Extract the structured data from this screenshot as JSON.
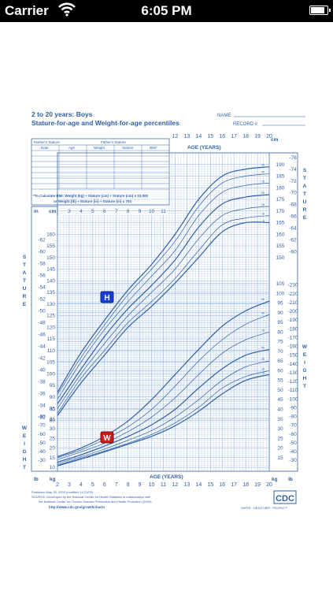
{
  "status_bar": {
    "carrier": "Carrier",
    "time": "6:05 PM",
    "battery_level": 0.9,
    "icons": [
      "wifi-icon",
      "battery-icon"
    ]
  },
  "chart_page": {
    "title": "2 to 20 years: Boys",
    "subtitle": "Stature-for-age and Weight-for-age percentiles",
    "name_label": "NAME",
    "record_label": "RECORD #",
    "table_headers": {
      "mothers_stature": "Mother's Stature",
      "fathers_stature": "Father's Stature",
      "date": "Date",
      "age": "Age",
      "weight": "Weight",
      "stature": "Stature",
      "bmi": "BMI*"
    },
    "bmi_note_line1": "*To Calculate BMI: Weight (kg) ÷ Stature (cm) ÷ Stature (cm) x 10,000",
    "bmi_note_line2": "or Weight (lb) ÷ Stature (in) ÷ Stature (in) x 703",
    "age_axis_label": "AGE (YEARS)",
    "stature_label": "STATURE",
    "weight_label": "WEIGHT",
    "unit_in": "in",
    "unit_cm": "cm",
    "unit_lb": "lb",
    "unit_kg": "kg",
    "marker_h": "H",
    "marker_w": "W",
    "published": "Published May 30, 2000 (modified 11/21/00).",
    "source_line1": "SOURCE: Developed by the National Center for Health Statistics in collaboration with",
    "source_line2": "the National Center for Chronic Disease Prevention and Health Promotion (2000).",
    "url": "http://www.cdc.gov/growthcharts",
    "cdc_logo": "CDC",
    "cdc_tagline": "SAFER · HEALTHIER · PEOPLE™",
    "colors": {
      "ink": "#2f5fa6",
      "grid": "#8fb0dc",
      "h_marker": "#1a3fd6",
      "w_marker": "#d01a1a"
    }
  },
  "chart_data": {
    "type": "line",
    "x_ages_bottom": [
      2,
      3,
      4,
      5,
      6,
      7,
      8,
      9,
      10,
      11,
      12,
      13,
      14,
      15,
      16,
      17,
      18,
      19,
      20
    ],
    "x_ages_top": [
      12,
      13,
      14,
      15,
      16,
      17,
      18,
      19,
      20
    ],
    "x_ages_mid": [
      3,
      4,
      5,
      6,
      7,
      8,
      9,
      10,
      11
    ],
    "stature_cm_ticks": [
      80,
      85,
      90,
      95,
      100,
      105,
      110,
      115,
      120,
      125,
      130,
      135,
      140,
      145,
      150,
      155,
      160,
      165,
      170,
      175,
      180,
      185,
      190
    ],
    "stature_in_ticks": [
      30,
      32,
      34,
      36,
      38,
      40,
      42,
      44,
      46,
      48,
      50,
      52,
      54,
      56,
      58,
      60,
      62,
      64,
      66,
      68,
      70,
      72,
      74,
      76
    ],
    "weight_kg_ticks": [
      10,
      15,
      20,
      25,
      30,
      35,
      40,
      45,
      50,
      55,
      60,
      65,
      70,
      75,
      80,
      85,
      90,
      95,
      100,
      105
    ],
    "weight_lb_ticks": [
      30,
      40,
      50,
      60,
      70,
      80,
      90,
      100,
      110,
      120,
      130,
      140,
      150,
      160,
      170,
      180,
      190,
      200,
      210,
      220,
      230
    ],
    "weight_lb_ticks_left": [
      30,
      40,
      50,
      60,
      70,
      80
    ],
    "percentile_labels": [
      "5",
      "10",
      "25",
      "50",
      "75",
      "90",
      "95"
    ],
    "stature_series": [
      {
        "name": "95",
        "ages": [
          2,
          4,
          6,
          8,
          10,
          12,
          14,
          16,
          18,
          20
        ],
        "values": [
          92,
          109,
          123,
          136,
          147,
          160,
          175,
          185,
          188,
          189
        ]
      },
      {
        "name": "90",
        "ages": [
          2,
          4,
          6,
          8,
          10,
          12,
          14,
          16,
          18,
          20
        ],
        "values": [
          91,
          107,
          121,
          134,
          145,
          157,
          172,
          182,
          185,
          186
        ]
      },
      {
        "name": "75",
        "ages": [
          2,
          4,
          6,
          8,
          10,
          12,
          14,
          16,
          18,
          20
        ],
        "values": [
          89,
          105,
          119,
          131,
          142,
          153,
          168,
          178,
          181,
          182
        ]
      },
      {
        "name": "50",
        "ages": [
          2,
          4,
          6,
          8,
          10,
          12,
          14,
          16,
          18,
          20
        ],
        "values": [
          87,
          102,
          116,
          128,
          138,
          149,
          163,
          173,
          176,
          177
        ]
      },
      {
        "name": "25",
        "ages": [
          2,
          4,
          6,
          8,
          10,
          12,
          14,
          16,
          18,
          20
        ],
        "values": [
          85,
          100,
          113,
          125,
          135,
          145,
          158,
          168,
          171,
          172
        ]
      },
      {
        "name": "10",
        "ages": [
          2,
          4,
          6,
          8,
          10,
          12,
          14,
          16,
          18,
          20
        ],
        "values": [
          83,
          98,
          110,
          122,
          131,
          141,
          153,
          164,
          167,
          168
        ]
      },
      {
        "name": "5",
        "ages": [
          2,
          4,
          6,
          8,
          10,
          12,
          14,
          16,
          18,
          20
        ],
        "values": [
          82,
          96,
          108,
          120,
          129,
          139,
          150,
          161,
          165,
          165
        ]
      }
    ],
    "weight_series": [
      {
        "name": "95",
        "ages": [
          2,
          4,
          6,
          8,
          10,
          12,
          14,
          16,
          18,
          20
        ],
        "values": [
          15.5,
          20,
          26,
          34,
          45,
          58,
          71,
          83,
          91,
          96
        ]
      },
      {
        "name": "90",
        "ages": [
          2,
          4,
          6,
          8,
          10,
          12,
          14,
          16,
          18,
          20
        ],
        "values": [
          15,
          19,
          24.5,
          31,
          40,
          52,
          65,
          76,
          84,
          89
        ]
      },
      {
        "name": "75",
        "ages": [
          2,
          4,
          6,
          8,
          10,
          12,
          14,
          16,
          18,
          20
        ],
        "values": [
          14,
          18,
          22.5,
          28.5,
          36,
          46,
          58,
          69,
          76,
          80
        ]
      },
      {
        "name": "50",
        "ages": [
          2,
          4,
          6,
          8,
          10,
          12,
          14,
          16,
          18,
          20
        ],
        "values": [
          12.7,
          16.5,
          21,
          26,
          32,
          40,
          51,
          61,
          68,
          71
        ]
      },
      {
        "name": "25",
        "ages": [
          2,
          4,
          6,
          8,
          10,
          12,
          14,
          16,
          18,
          20
        ],
        "values": [
          12,
          15.5,
          19.5,
          24,
          29,
          36,
          45,
          55,
          62,
          65
        ]
      },
      {
        "name": "10",
        "ages": [
          2,
          4,
          6,
          8,
          10,
          12,
          14,
          16,
          18,
          20
        ],
        "values": [
          11.2,
          14.8,
          18.5,
          22.5,
          27,
          33,
          41,
          51,
          57,
          60
        ]
      },
      {
        "name": "5",
        "ages": [
          2,
          4,
          6,
          8,
          10,
          12,
          14,
          16,
          18,
          20
        ],
        "values": [
          10.8,
          14.3,
          18,
          22,
          26,
          31.5,
          39,
          48,
          55,
          58
        ]
      }
    ]
  }
}
